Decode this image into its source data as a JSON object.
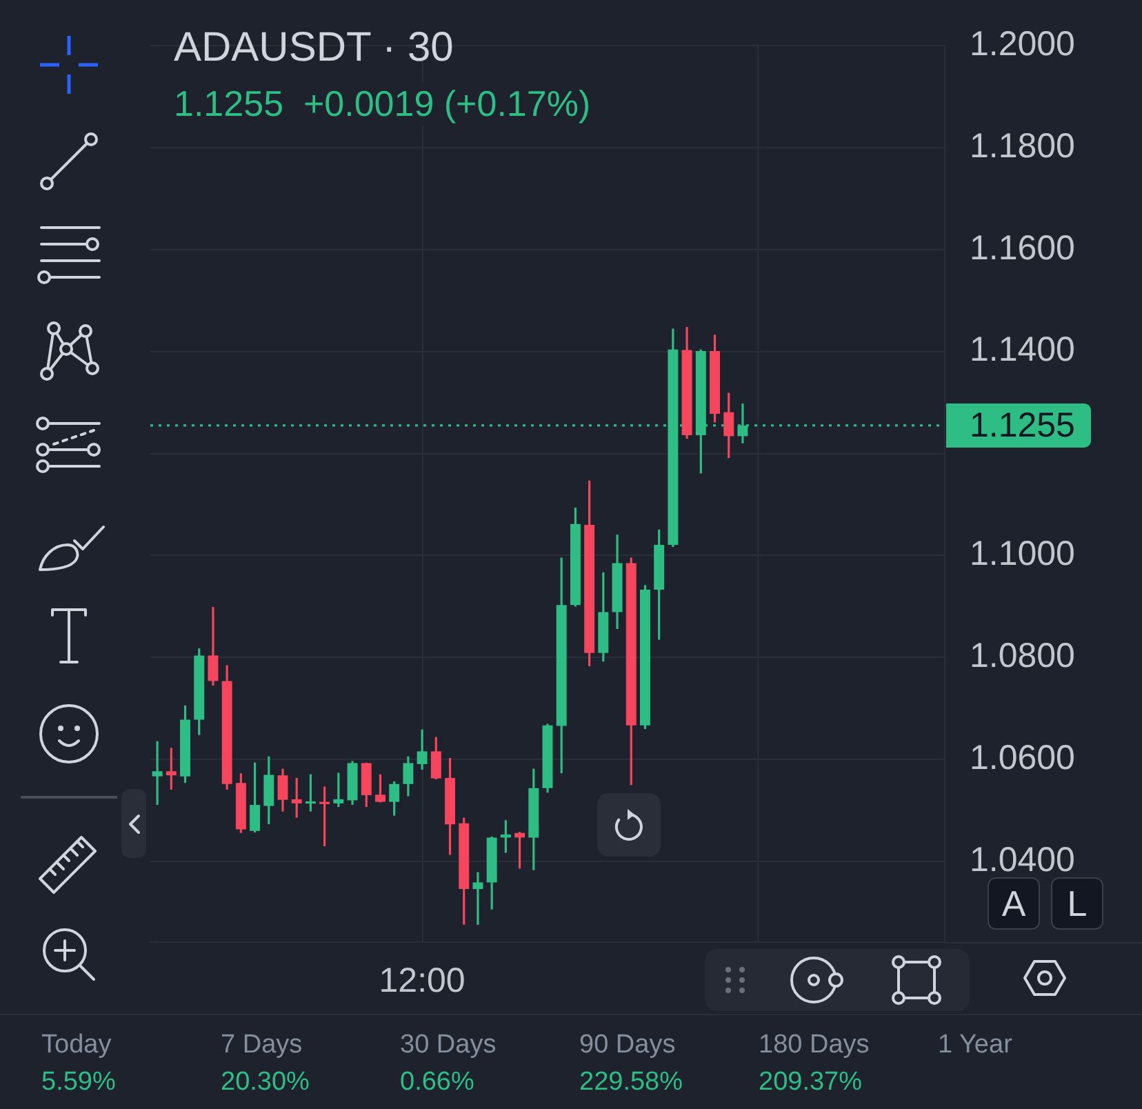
{
  "chart_data": {
    "type": "candlestick",
    "title": "ADAUSDT · 30",
    "subtitle": "1.1255  +0.0019 (+0.17%)",
    "categories": [
      null,
      null,
      null,
      null,
      null,
      null,
      null,
      null,
      null,
      null,
      null,
      null,
      null,
      null,
      null,
      null,
      null,
      null,
      null,
      "12:00",
      null,
      null,
      null,
      null,
      null,
      null,
      null,
      null,
      null,
      null,
      null,
      null,
      null,
      null,
      null,
      null,
      null,
      null,
      null,
      null,
      null,
      null,
      null,
      null,
      null,
      null,
      null,
      null,
      null,
      null,
      null,
      null,
      null,
      null,
      null,
      null,
      null
    ],
    "ohlc": [
      [
        1.0567,
        1.0636,
        1.0511,
        1.0577
      ],
      [
        1.0577,
        1.0623,
        1.0541,
        1.0569
      ],
      [
        1.0567,
        1.0706,
        1.0554,
        1.0678
      ],
      [
        1.0678,
        1.0818,
        1.0648,
        1.0804
      ],
      [
        1.0804,
        1.0899,
        1.0745,
        1.0754
      ],
      [
        1.0754,
        1.0785,
        1.0541,
        1.0552
      ],
      [
        1.0554,
        1.0573,
        1.0456,
        1.0463
      ],
      [
        1.046,
        1.0594,
        1.0457,
        1.0511
      ],
      [
        1.0509,
        1.0606,
        1.0473,
        1.057
      ],
      [
        1.0569,
        1.0582,
        1.0498,
        1.0521
      ],
      [
        1.0522,
        1.0564,
        1.0486,
        1.0514
      ],
      [
        1.0514,
        1.0571,
        1.0498,
        1.0518
      ],
      [
        1.0517,
        1.0547,
        1.043,
        1.0513
      ],
      [
        1.0514,
        1.0574,
        1.0507,
        1.0522
      ],
      [
        1.052,
        1.0597,
        1.0511,
        1.0593
      ],
      [
        1.0593,
        1.0594,
        1.0507,
        1.053
      ],
      [
        1.0531,
        1.0571,
        1.0516,
        1.0517
      ],
      [
        1.0517,
        1.0557,
        1.049,
        1.0552
      ],
      [
        1.0552,
        1.0606,
        1.0528,
        1.0593
      ],
      [
        1.0591,
        1.0659,
        1.058,
        1.0616
      ],
      [
        1.0616,
        1.0644,
        1.0561,
        1.0563
      ],
      [
        1.0564,
        1.0603,
        1.0413,
        1.0473
      ],
      [
        1.0475,
        1.0486,
        1.0276,
        1.0346
      ],
      [
        1.0346,
        1.0379,
        1.0276,
        1.0359
      ],
      [
        1.0359,
        1.0449,
        1.0306,
        1.0447
      ],
      [
        1.0447,
        1.0481,
        1.0417,
        1.0453
      ],
      [
        1.0456,
        1.0458,
        1.0386,
        1.0447
      ],
      [
        1.0447,
        1.0582,
        1.0383,
        1.0544
      ],
      [
        1.0544,
        1.067,
        1.0535,
        1.0667
      ],
      [
        1.0666,
        1.0996,
        1.0573,
        1.0903
      ],
      [
        1.0903,
        1.1094,
        1.09,
        1.1062
      ],
      [
        1.106,
        1.1147,
        1.0783,
        1.0809
      ],
      [
        1.0809,
        1.0967,
        1.0792,
        1.0889
      ],
      [
        1.0889,
        1.1041,
        1.0856,
        1.0985
      ],
      [
        1.0985,
        1.0996,
        1.055,
        1.0667
      ],
      [
        1.0667,
        1.0942,
        1.066,
        1.0933
      ],
      [
        1.0933,
        1.1051,
        1.0835,
        1.1021
      ],
      [
        1.1021,
        1.1445,
        1.1017,
        1.1404
      ],
      [
        1.1403,
        1.1448,
        1.1229,
        1.1236
      ],
      [
        1.1236,
        1.1404,
        1.1161,
        1.1401
      ],
      [
        1.1401,
        1.1433,
        1.1261,
        1.1278
      ],
      [
        1.1281,
        1.1319,
        1.1191,
        1.1234
      ],
      [
        1.1234,
        1.1298,
        1.122,
        1.1255
      ],
      null,
      null,
      null,
      null,
      null,
      null,
      null,
      null,
      null,
      null,
      null,
      null,
      null,
      null
    ],
    "colors": [
      "#2ebd85",
      "#f6465d",
      "#2ebd85",
      "#2ebd85",
      "#f6465d",
      "#f6465d",
      "#f6465d",
      "#2ebd85",
      "#2ebd85",
      "#f6465d",
      "#f6465d",
      "#2ebd85",
      "#f6465d",
      "#2ebd85",
      "#2ebd85",
      "#f6465d",
      "#f6465d",
      "#2ebd85",
      "#2ebd85",
      "#2ebd85",
      "#f6465d",
      "#f6465d",
      "#f6465d",
      "#2ebd85",
      "#2ebd85",
      "#2ebd85",
      "#f6465d",
      "#2ebd85",
      "#2ebd85",
      "#2ebd85",
      "#2ebd85",
      "#f6465d",
      "#2ebd85",
      "#2ebd85",
      "#f6465d",
      "#2ebd85",
      "#2ebd85",
      "#2ebd85",
      "#f6465d",
      "#2ebd85",
      "#f6465d",
      "#f6465d",
      "#2ebd85",
      null,
      null,
      null,
      null,
      null,
      null,
      null,
      null,
      null,
      null,
      null,
      null,
      null,
      null
    ],
    "ylim": [
      1.0242,
      1.2
    ],
    "yticks": [
      {
        "value": 1.04,
        "label": "1.0400"
      },
      {
        "value": 1.06,
        "label": "1.0600"
      },
      {
        "value": 1.08,
        "label": "1.0800"
      },
      {
        "value": 1.1,
        "label": "1.1000"
      },
      {
        "value": 1.12,
        "label": null
      },
      {
        "value": 1.14,
        "label": "1.1400"
      },
      {
        "value": 1.16,
        "label": "1.1600"
      },
      {
        "value": 1.18,
        "label": "1.1800"
      },
      {
        "value": 1.2,
        "label": "1.2000"
      }
    ],
    "grid": true,
    "ref_lines": [
      {
        "axis": "y",
        "value": 1.1255,
        "label": "1.1255",
        "color": "#2ebd85",
        "line_style": "dotted"
      }
    ],
    "annotations": [
      "Today",
      "5.59%",
      "7 Days",
      "20.30%",
      "30 Days",
      "0.66%",
      "90 Days",
      "229.58%",
      "180 Days",
      "209.37%",
      "1 Year",
      "A",
      "L"
    ]
  }
}
